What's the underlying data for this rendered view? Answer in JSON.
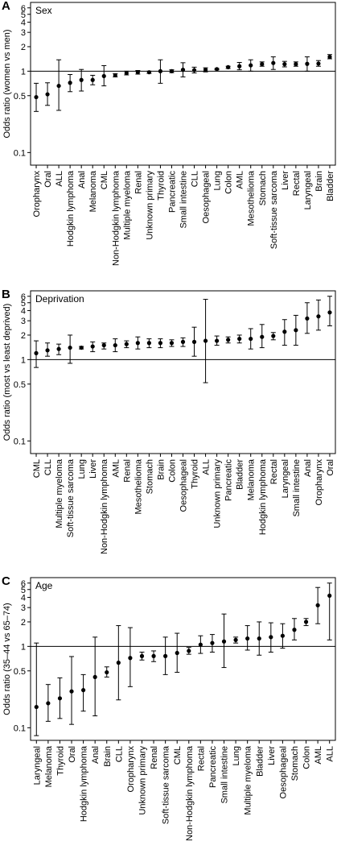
{
  "chart_data": [
    {
      "type": "errorbar",
      "panel_label": "A",
      "title": "Sex",
      "ylabel": "Odds ratio (women vs men)",
      "log_scale": true,
      "reference_line": 1,
      "ylim": [
        0.07,
        7
      ],
      "yticks": [
        0.1,
        0.5,
        1,
        2,
        3,
        4,
        5,
        6
      ],
      "categories": [
        "Oropharynx",
        "Oral",
        "ALL",
        "Hodgkin lymphoma",
        "Anal",
        "Melanoma",
        "CML",
        "Non-Hodgkin lymphoma",
        "Multiple myeloma",
        "Renal",
        "Unknown primary",
        "Thyroid",
        "Pancreatic",
        "Small intestine",
        "CLL",
        "Oesophageal",
        "Lung",
        "Colon",
        "AML",
        "Mesothelioma",
        "Stomach",
        "Soft-tissue sarcoma",
        "Liver",
        "Rectal",
        "Laryngeal",
        "Brain",
        "Bladder"
      ],
      "values": [
        0.48,
        0.52,
        0.66,
        0.72,
        0.78,
        0.78,
        0.87,
        0.89,
        0.95,
        0.97,
        0.97,
        1.0,
        1.0,
        1.04,
        1.03,
        1.04,
        1.06,
        1.12,
        1.15,
        1.18,
        1.22,
        1.26,
        1.22,
        1.22,
        1.23,
        1.24,
        1.5
      ],
      "lower": [
        0.32,
        0.38,
        0.33,
        0.56,
        0.57,
        0.68,
        0.66,
        0.85,
        0.9,
        0.92,
        0.94,
        0.71,
        0.96,
        0.85,
        0.95,
        0.98,
        1.04,
        1.08,
        1.04,
        1.0,
        1.15,
        1.05,
        1.13,
        1.15,
        1.0,
        1.15,
        1.42
      ],
      "upper": [
        0.71,
        0.72,
        1.38,
        0.91,
        1.05,
        0.89,
        1.17,
        0.93,
        1.0,
        1.02,
        1.0,
        1.38,
        1.04,
        1.27,
        1.12,
        1.1,
        1.08,
        1.15,
        1.28,
        1.38,
        1.3,
        1.5,
        1.32,
        1.3,
        1.5,
        1.35,
        1.6
      ]
    },
    {
      "type": "errorbar",
      "panel_label": "B",
      "title": "Deprivation",
      "ylabel": "Odds ratio (most vs least deprived)",
      "log_scale": true,
      "reference_line": 1,
      "ylim": [
        0.07,
        7
      ],
      "yticks": [
        0.1,
        0.5,
        1,
        2,
        3,
        4,
        5,
        6
      ],
      "categories": [
        "CML",
        "CLL",
        "Multiple myeloma",
        "Soft-tissue sarcoma",
        "Lung",
        "Liver",
        "Non-Hodgkin lymphoma",
        "AML",
        "Renal",
        "Mesothelioma",
        "Stomach",
        "Brain",
        "Colon",
        "Oesophageal",
        "Thyroid",
        "ALL",
        "Unknown primary",
        "Pancreatic",
        "Bladder",
        "Melanoma",
        "Hodgkin lymphoma",
        "Rectal",
        "Laryngeal",
        "Small intestine",
        "Anal",
        "Oropharynx",
        "Oral"
      ],
      "values": [
        1.2,
        1.3,
        1.35,
        1.4,
        1.4,
        1.45,
        1.5,
        1.5,
        1.55,
        1.6,
        1.6,
        1.6,
        1.6,
        1.65,
        1.65,
        1.7,
        1.7,
        1.75,
        1.8,
        1.8,
        1.9,
        1.95,
        2.2,
        2.3,
        3.2,
        3.4,
        3.8
      ],
      "lower": [
        0.8,
        1.1,
        1.15,
        0.9,
        1.35,
        1.25,
        1.35,
        1.25,
        1.4,
        1.35,
        1.4,
        1.4,
        1.45,
        1.45,
        1.1,
        0.52,
        1.5,
        1.6,
        1.6,
        1.35,
        1.4,
        1.75,
        1.5,
        1.5,
        2.1,
        2.3,
        2.6
      ],
      "upper": [
        1.7,
        1.6,
        1.55,
        2.0,
        1.45,
        1.65,
        1.6,
        1.8,
        1.7,
        1.9,
        1.8,
        1.8,
        1.75,
        1.85,
        2.5,
        5.5,
        1.95,
        1.9,
        2.0,
        2.4,
        2.7,
        2.15,
        3.1,
        3.5,
        5.0,
        5.4,
        6.0
      ]
    },
    {
      "type": "errorbar",
      "panel_label": "C",
      "title": "Age",
      "ylabel": "Odds ratio (35–44 vs 65–74)",
      "log_scale": true,
      "reference_line": 1,
      "ylim": [
        0.07,
        7
      ],
      "yticks": [
        0.1,
        0.5,
        1,
        2,
        3,
        4,
        5,
        6
      ],
      "categories": [
        "Laryngeal",
        "Melanoma",
        "Thyroid",
        "Oral",
        "Hodgkin lymphoma",
        "Anal",
        "Brain",
        "CLL",
        "Oropharynx",
        "Unknown primary",
        "Renal",
        "Soft-tissue sarcoma",
        "CML",
        "Non-Hodgkin lymphoma",
        "Rectal",
        "Pancreatic",
        "Small intestine",
        "Lung",
        "Multiple myeloma",
        "Bladder",
        "Liver",
        "Oesophageal",
        "Stomach",
        "Colon",
        "AML",
        "ALL"
      ],
      "values": [
        0.18,
        0.2,
        0.23,
        0.28,
        0.29,
        0.42,
        0.48,
        0.63,
        0.72,
        0.76,
        0.76,
        0.76,
        0.83,
        0.88,
        1.05,
        1.1,
        1.15,
        1.2,
        1.25,
        1.25,
        1.3,
        1.35,
        1.6,
        2.0,
        3.2,
        4.2
      ],
      "lower": [
        0.08,
        0.12,
        0.13,
        0.11,
        0.16,
        0.14,
        0.42,
        0.22,
        0.32,
        0.68,
        0.65,
        0.45,
        0.48,
        0.8,
        0.82,
        0.85,
        0.55,
        1.1,
        0.9,
        0.78,
        0.85,
        0.95,
        1.2,
        1.8,
        1.9,
        1.2
      ],
      "upper": [
        1.1,
        0.34,
        0.41,
        0.75,
        0.45,
        1.3,
        0.56,
        1.8,
        1.7,
        0.85,
        0.88,
        1.3,
        1.45,
        0.97,
        1.35,
        1.4,
        2.5,
        1.3,
        1.8,
        2.0,
        1.95,
        1.9,
        2.2,
        2.2,
        5.3,
        6.0
      ]
    }
  ]
}
